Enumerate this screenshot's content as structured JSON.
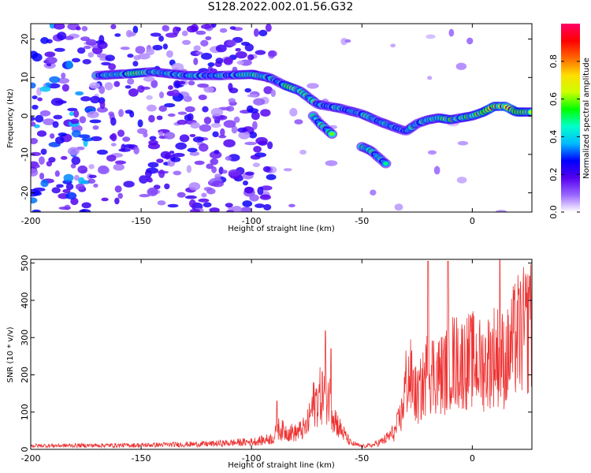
{
  "title": "S128.2022.002.01.56.G32",
  "chart_data": [
    {
      "type": "heatmap",
      "xlabel": "Height of straight line (km)",
      "ylabel": "Frequency (Hz)",
      "xlim": [
        -200,
        27
      ],
      "ylim": [
        -25,
        24
      ],
      "xticks": [
        "-200",
        "-150",
        "-100",
        "-50",
        "0"
      ],
      "yticks": [
        "20",
        "10",
        "0",
        "-10",
        "-20"
      ],
      "ridge": {
        "x": [
          -170,
          -155,
          -145,
          -130,
          -115,
          -100,
          -92,
          -85,
          -78,
          -70,
          -60,
          -50,
          -42,
          -35,
          -30,
          -25,
          -20,
          -15,
          -10,
          -5,
          0,
          5,
          10,
          15,
          20,
          27
        ],
        "y": [
          10.5,
          11,
          11.5,
          10.5,
          10.5,
          10.8,
          10,
          8,
          6.5,
          3,
          2,
          0.5,
          -1.5,
          -3,
          -4,
          -2,
          -1,
          -0.5,
          -1,
          -0.5,
          0,
          1,
          2.5,
          2.5,
          1,
          1
        ]
      },
      "branches": [
        {
          "x": [
            -72,
            -69,
            -66,
            -63
          ],
          "y": [
            0,
            -2,
            -3.5,
            -5
          ]
        },
        {
          "x": [
            -50,
            -46,
            -42,
            -39
          ],
          "y": [
            -8,
            -9,
            -11,
            -12.5
          ]
        }
      ],
      "colorbar": {
        "label": "Normalized spectral amplitude",
        "ticks": [
          "0.0",
          "0.2",
          "0.4",
          "0.6",
          "0.8"
        ],
        "range": [
          0,
          1
        ],
        "colormap": [
          "#ffffff",
          "#9966ff",
          "#5500ee",
          "#0000ff",
          "#00bbff",
          "#00ffcc",
          "#00ff00",
          "#ccff00",
          "#ffdd00",
          "#ff6600",
          "#ff0000",
          "#ff0066"
        ]
      }
    },
    {
      "type": "line",
      "xlabel": "Height of straight line (km)",
      "ylabel": "SNR (10 * v/v)",
      "xlim": [
        -200,
        27
      ],
      "ylim": [
        0,
        510
      ],
      "xticks": [
        "-200",
        "-150",
        "-100",
        "-50",
        "0"
      ],
      "yticks": [
        "500",
        "400",
        "300",
        "200",
        "100",
        "0"
      ],
      "color": "#ee3333",
      "envelope": {
        "x": [
          -200,
          -150,
          -120,
          -100,
          -95,
          -90,
          -88,
          -85,
          -80,
          -75,
          -72,
          -70,
          -67,
          -65,
          -62,
          -60,
          -57,
          -55,
          -50,
          -45,
          -40,
          -35,
          -32,
          -30,
          -28,
          -25,
          -22,
          -20,
          -18,
          -15,
          -12,
          -10,
          -5,
          0,
          5,
          10,
          13,
          15,
          20,
          25,
          27
        ],
        "y": [
          12,
          14,
          18,
          25,
          30,
          38,
          70,
          60,
          55,
          75,
          150,
          170,
          190,
          180,
          100,
          70,
          40,
          20,
          10,
          14,
          30,
          60,
          120,
          230,
          240,
          170,
          220,
          270,
          260,
          250,
          260,
          300,
          290,
          300,
          280,
          320,
          310,
          290,
          380,
          400,
          420
        ]
      },
      "spikes": [
        {
          "x": -88.5,
          "y": 130
        },
        {
          "x": -66.5,
          "y": 318
        },
        {
          "x": -64,
          "y": 270
        },
        {
          "x": -20,
          "y": 505
        },
        {
          "x": -11,
          "y": 505
        },
        {
          "x": 12.5,
          "y": 510
        },
        {
          "x": 26,
          "y": 465
        }
      ]
    }
  ]
}
